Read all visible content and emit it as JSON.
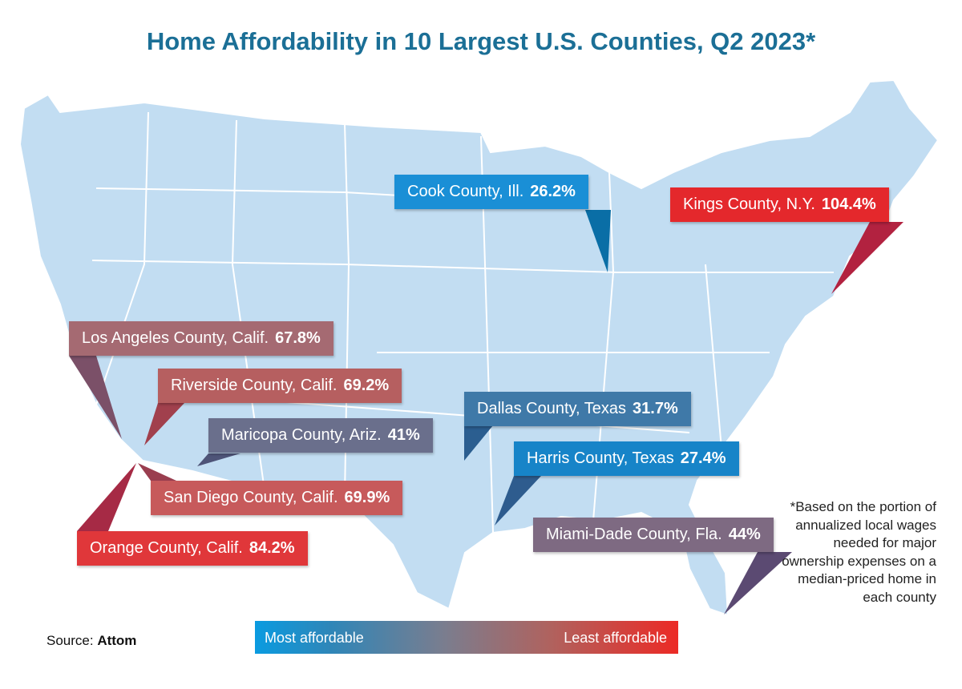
{
  "title": "Home Affordability in 10 Largest U.S. Counties, Q2 2023*",
  "counties": [
    {
      "name": "Cook County, Ill.",
      "value": "26.2%",
      "color": "#1a8fd6"
    },
    {
      "name": "Kings County, N.Y.",
      "value": "104.4%",
      "color": "#e4282c"
    },
    {
      "name": "Los Angeles County, Calif.",
      "value": "67.8%",
      "color": "#a56a72"
    },
    {
      "name": "Riverside County, Calif.",
      "value": "69.2%",
      "color": "#b65f60"
    },
    {
      "name": "Dallas County, Texas",
      "value": "31.7%",
      "color": "#3f79a8"
    },
    {
      "name": "Maricopa County, Ariz.",
      "value": "41%",
      "color": "#6a6f8c"
    },
    {
      "name": "Harris County, Texas",
      "value": "27.4%",
      "color": "#1784c8"
    },
    {
      "name": "San Diego County, Calif.",
      "value": "69.9%",
      "color": "#c75a5b"
    },
    {
      "name": "Orange County, Calif.",
      "value": "84.2%",
      "color": "#e0373a"
    },
    {
      "name": "Miami-Dade County, Fla.",
      "value": "44%",
      "color": "#7e6a82"
    }
  ],
  "source": {
    "label": "Source:",
    "name": "Attom"
  },
  "legend": {
    "low": "Most affordable",
    "high": "Least affordable"
  },
  "note": "*Based on the portion of annualized local wages needed for major ownership expenses on a median-priced home in each county",
  "colors": {
    "land": "#c2ddf2",
    "title": "#1b6f96"
  }
}
